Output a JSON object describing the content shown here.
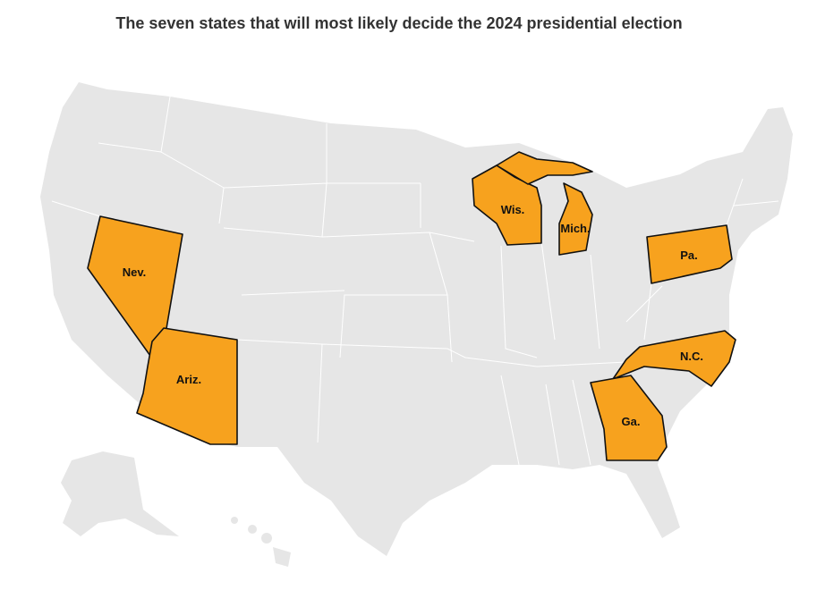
{
  "title": "The seven states that will most likely decide the 2024 presidential election",
  "colors": {
    "swing": "#f7a21e",
    "other": "#e6e6e6",
    "border": "#ffffff"
  },
  "states": [
    {
      "name": "Nevada",
      "label": "Nev."
    },
    {
      "name": "Arizona",
      "label": "Ariz."
    },
    {
      "name": "Wisconsin",
      "label": "Wis."
    },
    {
      "name": "Michigan",
      "label": "Mich."
    },
    {
      "name": "Pennsylvania",
      "label": "Pa."
    },
    {
      "name": "North Carolina",
      "label": "N.C."
    },
    {
      "name": "Georgia",
      "label": "Ga."
    }
  ]
}
